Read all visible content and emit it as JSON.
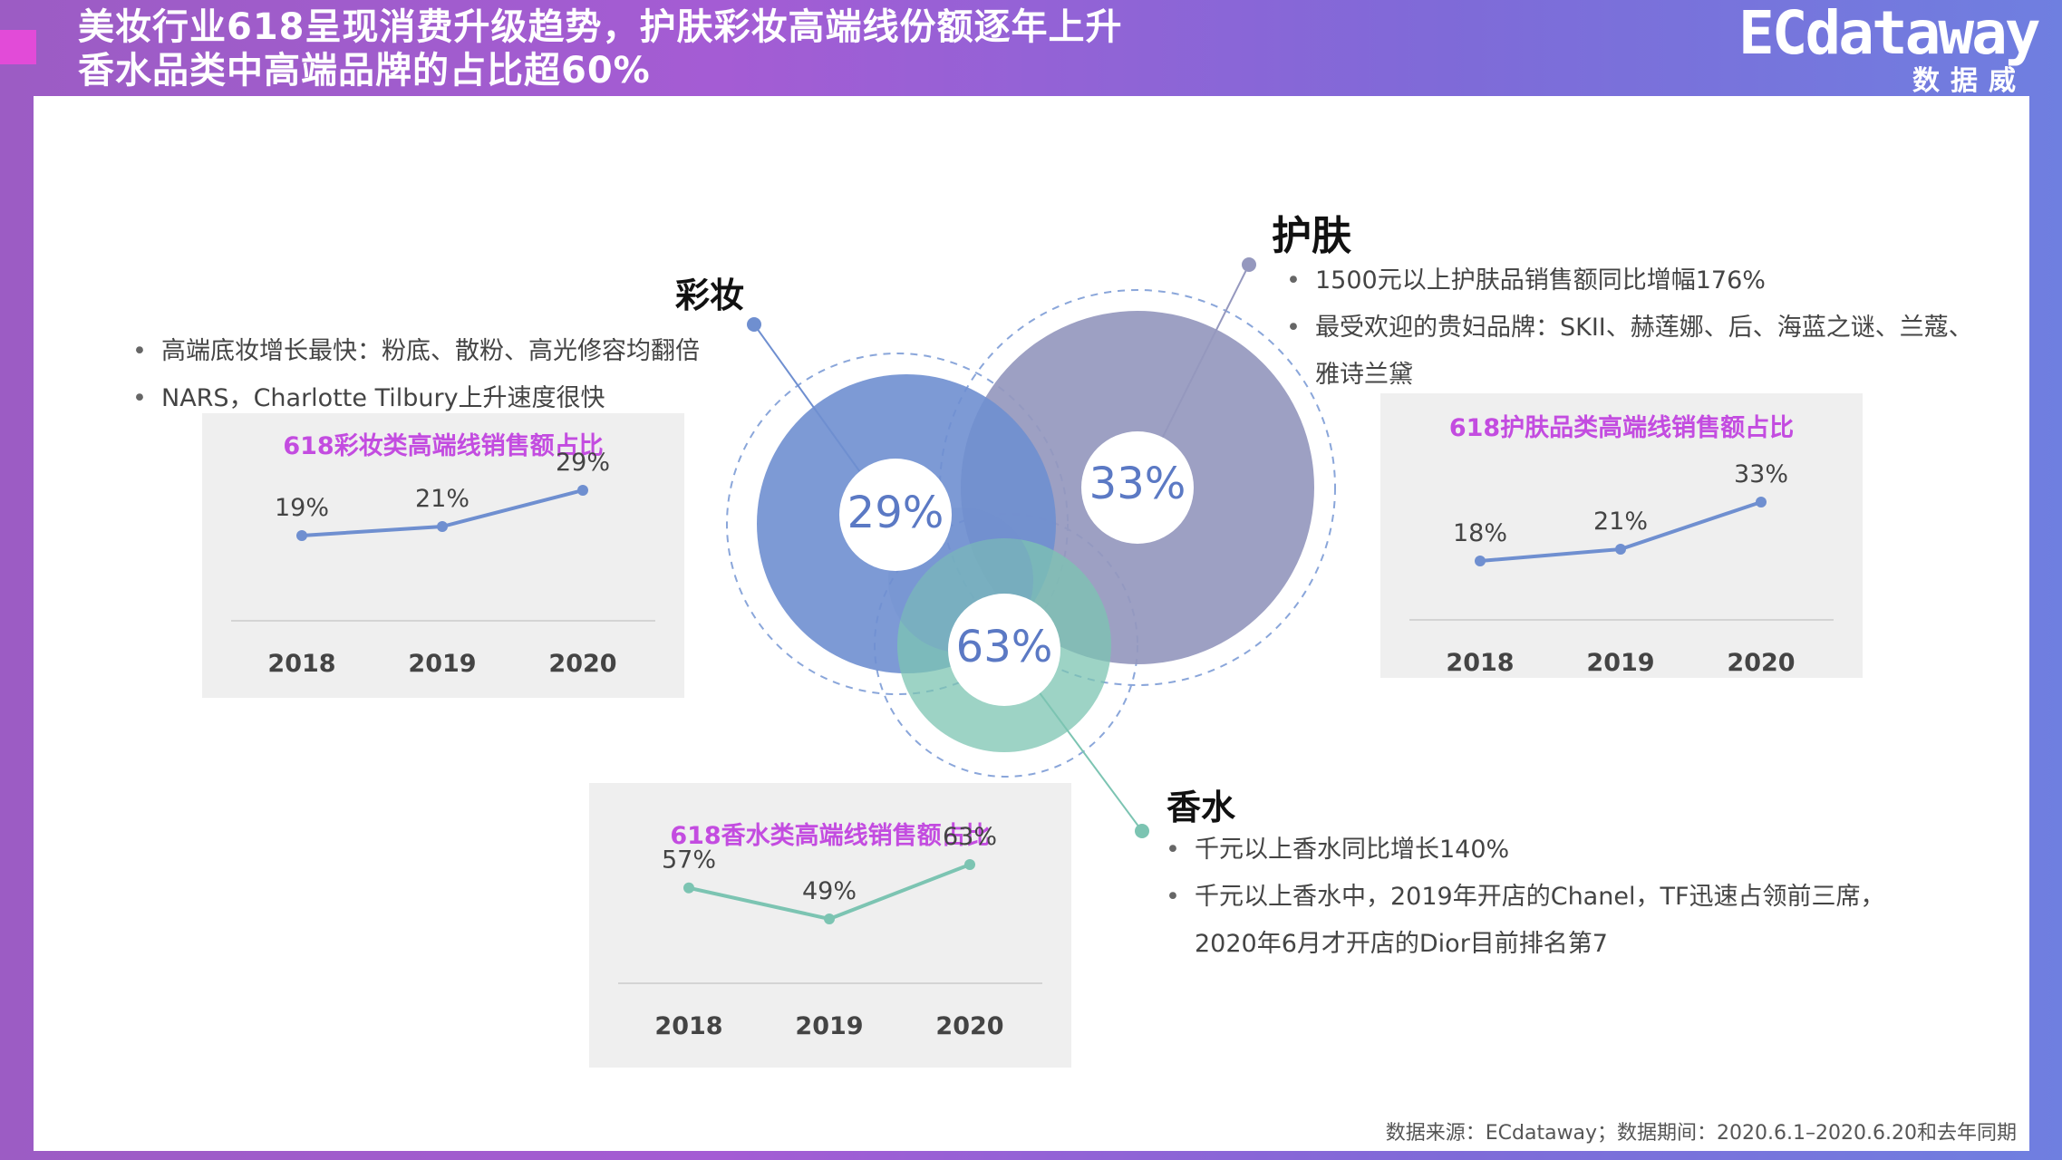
{
  "header": {
    "title_line1": "美妆行业618呈现消费升级趋势，护肤彩妆高端线份额逐年上升",
    "title_line2": "香水品类中高端品牌的占比超60%"
  },
  "logo": {
    "main": "ECdataway",
    "sub": "数据威"
  },
  "sections": {
    "makeup": {
      "title": "彩妆",
      "bullets": [
        "高端底妆增长最快：粉底、散粉、高光修容均翻倍",
        "NARS，Charlotte Tilbury上升速度很快"
      ],
      "circle_label": "29%"
    },
    "skincare": {
      "title": "护肤",
      "bullets": [
        "1500元以上护肤品销售额同比增幅176%",
        "最受欢迎的贵妇品牌：SKII、赫莲娜、后、海蓝之谜、兰蔻、"
      ],
      "bullet_cont": "雅诗兰黛",
      "circle_label": "33%"
    },
    "perfume": {
      "title": "香水",
      "bullets": [
        "千元以上香水同比增长140%",
        "千元以上香水中，2019年开店的Chanel，TF迅速占领前三席，"
      ],
      "bullet_cont": "2020年6月才开店的Dior目前排名第7",
      "circle_label": "63%"
    }
  },
  "colors": {
    "makeup": "#6f8fd0",
    "skincare": "#8f92bd",
    "perfume": "#7cc4b2",
    "mini_title": "#c34ce0"
  },
  "chart_data": [
    {
      "type": "line",
      "title": "618彩妆类高端线销售额占比",
      "categories": [
        "2018",
        "2019",
        "2020"
      ],
      "values": [
        19,
        21,
        29
      ],
      "labels": [
        "19%",
        "21%",
        "29%"
      ],
      "color": "#6f8fd0"
    },
    {
      "type": "line",
      "title": "618护肤品类高端线销售额占比",
      "categories": [
        "2018",
        "2019",
        "2020"
      ],
      "values": [
        18,
        21,
        33
      ],
      "labels": [
        "18%",
        "21%",
        "33%"
      ],
      "color": "#6f8fd0"
    },
    {
      "type": "line",
      "title": "618香水类高端线销售额占比",
      "categories": [
        "2018",
        "2019",
        "2020"
      ],
      "values": [
        57,
        49,
        63
      ],
      "labels": [
        "57%",
        "49%",
        "63%"
      ],
      "color": "#7cc4b2"
    }
  ],
  "source": "数据来源：ECdataway；数据期间：2020.6.1–2020.6.20和去年同期"
}
